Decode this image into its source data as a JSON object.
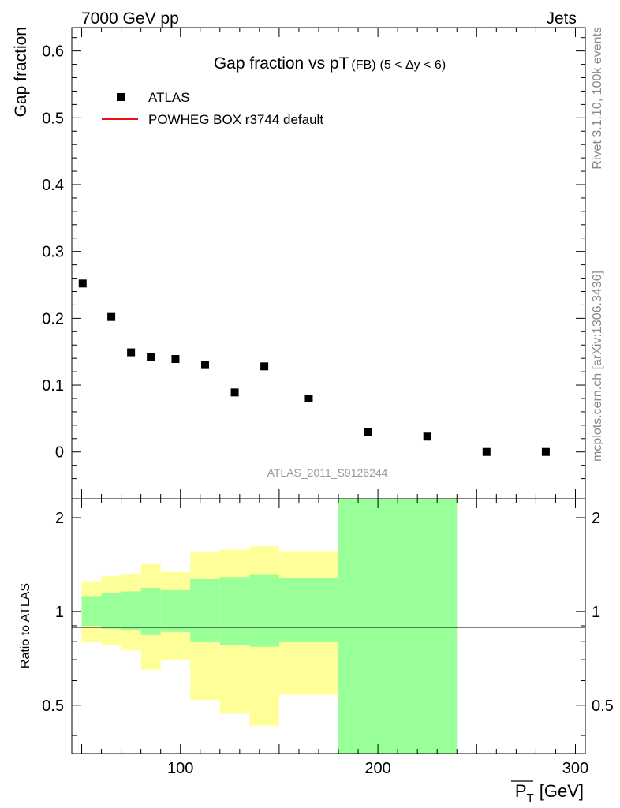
{
  "header": {
    "left": "7000 GeV pp",
    "right": "Jets"
  },
  "side": {
    "rivet": "Rivet 3.1.10,  100k events",
    "mcplots": "mcplots.cern.ch [arXiv:1306.3436]"
  },
  "chart_data": {
    "type": "scatter",
    "title": "Gap fraction vs pT",
    "title_suffix": "(FB)",
    "title_cut": "(5 < Δy < 6)",
    "ylabel": "Gap fraction",
    "xlabel": "P_T [GeV]",
    "xlabel_main": "P",
    "xlabel_sub": "T",
    "xlabel_unit": "[GeV]",
    "watermark": "ATLAS_2011_S9126244",
    "xlim": [
      45,
      305
    ],
    "ylim": [
      -0.07,
      0.635
    ],
    "xticks": [
      100,
      200,
      300
    ],
    "yticks": [
      0,
      0.1,
      0.2,
      0.3,
      0.4,
      0.5,
      0.6
    ],
    "ytick_labels": [
      "0",
      "0.1",
      "0.2",
      "0.3",
      "0.4",
      "0.5",
      "0.6"
    ],
    "legend": [
      {
        "name": "ATLAS",
        "marker": "square",
        "color": "#000000"
      },
      {
        "name": "POWHEG BOX r3744 default",
        "marker": "line",
        "color": "#ee1111"
      }
    ],
    "series": [
      {
        "name": "ATLAS",
        "x": [
          50.5,
          65,
          75,
          85,
          97.5,
          112.5,
          127.5,
          142.5,
          165,
          195,
          225,
          255,
          285
        ],
        "y": [
          0.252,
          0.202,
          0.149,
          0.142,
          0.139,
          0.13,
          0.089,
          0.128,
          0.08,
          0.03,
          0.023,
          0.0,
          0.0
        ]
      }
    ],
    "ratio": {
      "ylabel": "Ratio to ATLAS",
      "ylim": [
        0.35,
        2.3
      ],
      "yticks": [
        0.5,
        1,
        2
      ],
      "ytick_labels": [
        "0.5",
        "1",
        "2"
      ],
      "bins": [
        {
          "lo": 50,
          "hi": 60,
          "inner_lo": 0.9,
          "inner_hi": 1.12,
          "outer_lo": 0.8,
          "outer_hi": 1.25
        },
        {
          "lo": 60,
          "hi": 70,
          "inner_lo": 0.88,
          "inner_hi": 1.15,
          "outer_lo": 0.78,
          "outer_hi": 1.3
        },
        {
          "lo": 70,
          "hi": 80,
          "inner_lo": 0.87,
          "inner_hi": 1.16,
          "outer_lo": 0.75,
          "outer_hi": 1.32
        },
        {
          "lo": 80,
          "hi": 90,
          "inner_lo": 0.84,
          "inner_hi": 1.19,
          "outer_lo": 0.65,
          "outer_hi": 1.42
        },
        {
          "lo": 90,
          "hi": 105,
          "inner_lo": 0.86,
          "inner_hi": 1.17,
          "outer_lo": 0.7,
          "outer_hi": 1.34
        },
        {
          "lo": 105,
          "hi": 120,
          "inner_lo": 0.8,
          "inner_hi": 1.27,
          "outer_lo": 0.52,
          "outer_hi": 1.55
        },
        {
          "lo": 120,
          "hi": 135,
          "inner_lo": 0.78,
          "inner_hi": 1.29,
          "outer_lo": 0.47,
          "outer_hi": 1.58
        },
        {
          "lo": 135,
          "hi": 150,
          "inner_lo": 0.77,
          "inner_hi": 1.31,
          "outer_lo": 0.43,
          "outer_hi": 1.62
        },
        {
          "lo": 150,
          "hi": 180,
          "inner_lo": 0.8,
          "inner_hi": 1.28,
          "outer_lo": 0.54,
          "outer_hi": 1.56
        },
        {
          "lo": 180,
          "hi": 240,
          "inner_lo": 0.35,
          "inner_hi": 2.3,
          "outer_lo": 0.35,
          "outer_hi": 2.3
        }
      ],
      "colors": {
        "inner": "#99ff99",
        "outer": "#ffff99"
      }
    }
  }
}
